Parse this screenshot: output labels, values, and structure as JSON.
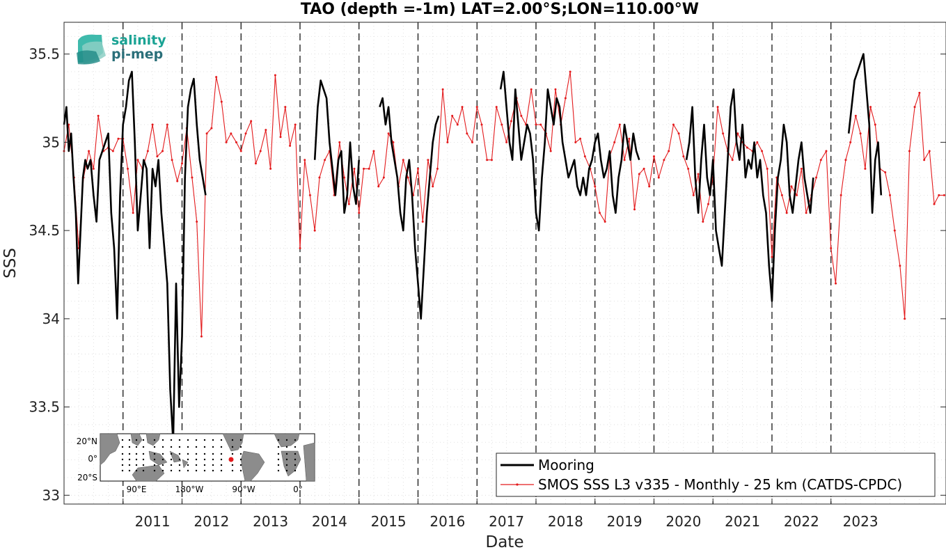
{
  "chart_data": {
    "type": "line",
    "title": "TAO (depth =-1m) LAT=2.00°S;LON=110.00°W",
    "xlabel": "Date",
    "ylabel": "SSS",
    "xlim": [
      2010.0,
      2024.95
    ],
    "ylim": [
      32.95,
      35.68
    ],
    "grid": true,
    "year_markers": [
      2011,
      2012,
      2013,
      2014,
      2015,
      2016,
      2017,
      2018,
      2019,
      2020,
      2021,
      2022,
      2023
    ],
    "x_tick_labels": [
      "2011",
      "2012",
      "2013",
      "2014",
      "2015",
      "2016",
      "2017",
      "2018",
      "2019",
      "2020",
      "2021",
      "2022",
      "2023"
    ],
    "y_ticks": [
      33,
      33.5,
      34,
      34.5,
      35,
      35.5
    ],
    "y_tick_labels": [
      "33",
      "33.5",
      "34",
      "34.5",
      "35",
      "35.5"
    ],
    "legend_placement": "bottom-right",
    "series": [
      {
        "name": "Mooring",
        "color": "#000000",
        "segments": [
          {
            "x": [
              2010.0,
              2010.04,
              2010.08,
              2010.12,
              2010.16,
              2010.2,
              2010.24,
              2010.28,
              2010.32,
              2010.36,
              2010.4,
              2010.45,
              2010.5,
              2010.55,
              2010.6,
              2010.65,
              2010.7,
              2010.75,
              2010.8,
              2010.85,
              2010.9,
              2010.95,
              2011.0,
              2011.05,
              2011.1,
              2011.15,
              2011.2,
              2011.25,
              2011.3,
              2011.35,
              2011.4,
              2011.45,
              2011.5,
              2011.55,
              2011.6,
              2011.65,
              2011.7,
              2011.75,
              2011.8,
              2011.85,
              2011.9,
              2011.95,
              2012.0,
              2012.05,
              2012.1,
              2012.15,
              2012.2,
              2012.25,
              2012.3,
              2012.35,
              2012.4
            ],
            "y": [
              35.1,
              35.2,
              34.95,
              35.05,
              34.8,
              34.6,
              34.2,
              34.5,
              34.8,
              34.9,
              34.85,
              34.9,
              34.7,
              34.55,
              34.9,
              34.95,
              35.0,
              35.05,
              34.6,
              34.4,
              34.0,
              34.7,
              35.1,
              35.2,
              35.35,
              35.4,
              35.0,
              34.5,
              34.7,
              34.9,
              34.85,
              34.4,
              34.85,
              34.75,
              34.9,
              34.6,
              34.4,
              34.2,
              33.6,
              33.3,
              34.2,
              33.5,
              33.9,
              34.8,
              35.2,
              35.3,
              35.36,
              35.1,
              34.9,
              34.8,
              34.7
            ]
          },
          {
            "x": [
              2014.25,
              2014.3,
              2014.35,
              2014.4,
              2014.45,
              2014.5,
              2014.55,
              2014.6,
              2014.65,
              2014.7,
              2014.75,
              2014.8,
              2014.85,
              2014.9,
              2014.95,
              2015.0
            ],
            "y": [
              34.9,
              35.2,
              35.35,
              35.3,
              35.25,
              35.0,
              34.85,
              34.7,
              34.9,
              34.95,
              34.6,
              34.7,
              35.0,
              34.75,
              34.65,
              34.9
            ]
          },
          {
            "x": [
              2015.35,
              2015.4,
              2015.45,
              2015.5,
              2015.55,
              2015.6,
              2015.65,
              2015.7,
              2015.75,
              2015.8,
              2015.85,
              2015.9,
              2015.95,
              2016.0,
              2016.05,
              2016.1,
              2016.15,
              2016.2,
              2016.25,
              2016.3,
              2016.35
            ],
            "y": [
              35.2,
              35.25,
              35.1,
              35.2,
              35.0,
              34.9,
              34.8,
              34.6,
              34.5,
              34.8,
              34.9,
              34.7,
              34.4,
              34.2,
              34.0,
              34.3,
              34.6,
              34.8,
              35.0,
              35.1,
              35.15
            ]
          },
          {
            "x": [
              2017.4,
              2017.45,
              2017.5,
              2017.55,
              2017.6,
              2017.65,
              2017.7,
              2017.75,
              2017.8,
              2017.85,
              2017.9,
              2017.95,
              2018.0,
              2018.05,
              2018.1,
              2018.15,
              2018.2,
              2018.25,
              2018.3,
              2018.35,
              2018.4,
              2018.45,
              2018.5,
              2018.55,
              2018.6,
              2018.65,
              2018.7,
              2018.75,
              2018.8,
              2018.85,
              2018.9,
              2018.95,
              2019.0,
              2019.05,
              2019.1,
              2019.15,
              2019.2,
              2019.25,
              2019.3,
              2019.35,
              2019.4,
              2019.45,
              2019.5,
              2019.55,
              2019.6,
              2019.65,
              2019.7,
              2019.75
            ],
            "y": [
              35.3,
              35.4,
              35.2,
              35.0,
              34.9,
              35.3,
              35.1,
              34.9,
              35.0,
              35.1,
              35.05,
              34.9,
              34.6,
              34.5,
              34.8,
              35.0,
              35.3,
              35.2,
              35.1,
              35.25,
              35.2,
              35.0,
              34.9,
              34.8,
              34.85,
              34.9,
              34.75,
              34.7,
              34.8,
              34.7,
              34.85,
              34.9,
              35.0,
              35.05,
              34.9,
              34.8,
              34.85,
              34.95,
              34.7,
              34.6,
              34.8,
              34.9,
              35.1,
              35.0,
              34.9,
              35.05,
              34.95,
              34.9
            ]
          },
          {
            "x": [
              2020.55,
              2020.6,
              2020.65,
              2020.7,
              2020.75,
              2020.8,
              2020.85,
              2020.9,
              2020.95,
              2021.0,
              2021.05,
              2021.1,
              2021.15,
              2021.2,
              2021.25,
              2021.3,
              2021.35,
              2021.4,
              2021.45,
              2021.5,
              2021.55,
              2021.6,
              2021.65,
              2021.7,
              2021.75,
              2021.8,
              2021.85,
              2021.9,
              2021.95,
              2022.0,
              2022.05,
              2022.1,
              2022.15,
              2022.2,
              2022.25,
              2022.3,
              2022.35,
              2022.4,
              2022.45,
              2022.5,
              2022.55,
              2022.6,
              2022.65,
              2022.7
            ],
            "y": [
              34.9,
              35.0,
              35.2,
              34.8,
              34.6,
              34.9,
              35.1,
              34.8,
              34.7,
              34.9,
              34.5,
              34.4,
              34.3,
              34.6,
              34.9,
              35.2,
              35.3,
              35.0,
              34.9,
              35.1,
              34.8,
              34.9,
              34.85,
              35.0,
              34.8,
              34.9,
              34.7,
              34.6,
              34.3,
              34.1,
              34.5,
              34.8,
              34.9,
              35.1,
              35.0,
              34.7,
              34.6,
              34.75,
              34.9,
              35.0,
              34.8,
              34.7,
              34.6,
              34.8
            ]
          },
          {
            "x": [
              2023.3,
              2023.35,
              2023.4,
              2023.45,
              2023.5,
              2023.55,
              2023.6,
              2023.65,
              2023.7,
              2023.75,
              2023.8,
              2023.85
            ],
            "y": [
              35.05,
              35.2,
              35.35,
              35.4,
              35.45,
              35.5,
              35.3,
              35.1,
              34.6,
              34.9,
              35.0,
              34.7
            ]
          }
        ]
      },
      {
        "name": "SMOS SSS L3 v335 - Monthly - 25 km (CATDS-CPDC)",
        "color": "#e31a1c",
        "x": [
          2010.0,
          2010.08,
          2010.17,
          2010.25,
          2010.33,
          2010.42,
          2010.5,
          2010.58,
          2010.67,
          2010.75,
          2010.83,
          2010.92,
          2011.0,
          2011.08,
          2011.17,
          2011.25,
          2011.33,
          2011.42,
          2011.5,
          2011.58,
          2011.67,
          2011.75,
          2011.83,
          2011.92,
          2012.0,
          2012.08,
          2012.17,
          2012.25,
          2012.33,
          2012.42,
          2012.5,
          2012.58,
          2012.67,
          2012.75,
          2012.83,
          2012.92,
          2013.0,
          2013.08,
          2013.17,
          2013.25,
          2013.33,
          2013.42,
          2013.5,
          2013.58,
          2013.67,
          2013.75,
          2013.83,
          2013.92,
          2014.0,
          2014.08,
          2014.17,
          2014.25,
          2014.33,
          2014.42,
          2014.5,
          2014.58,
          2014.67,
          2014.75,
          2014.83,
          2014.92,
          2015.0,
          2015.08,
          2015.17,
          2015.25,
          2015.33,
          2015.42,
          2015.5,
          2015.58,
          2015.67,
          2015.75,
          2015.83,
          2015.92,
          2016.0,
          2016.08,
          2016.17,
          2016.25,
          2016.33,
          2016.42,
          2016.5,
          2016.58,
          2016.67,
          2016.75,
          2016.83,
          2016.92,
          2017.0,
          2017.08,
          2017.17,
          2017.25,
          2017.33,
          2017.42,
          2017.5,
          2017.58,
          2017.67,
          2017.75,
          2017.83,
          2017.92,
          2018.0,
          2018.08,
          2018.17,
          2018.25,
          2018.33,
          2018.42,
          2018.5,
          2018.58,
          2018.67,
          2018.75,
          2018.83,
          2018.92,
          2019.0,
          2019.08,
          2019.17,
          2019.25,
          2019.33,
          2019.42,
          2019.5,
          2019.58,
          2019.67,
          2019.75,
          2019.83,
          2019.92,
          2020.0,
          2020.08,
          2020.17,
          2020.25,
          2020.33,
          2020.42,
          2020.5,
          2020.58,
          2020.67,
          2020.75,
          2020.83,
          2020.92,
          2021.0,
          2021.08,
          2021.17,
          2021.25,
          2021.33,
          2021.42,
          2021.5,
          2021.58,
          2021.67,
          2021.75,
          2021.83,
          2021.92,
          2022.0,
          2022.08,
          2022.17,
          2022.25,
          2022.33,
          2022.42,
          2022.5,
          2022.58,
          2022.67,
          2022.75,
          2022.83,
          2022.92,
          2023.0,
          2023.08,
          2023.17,
          2023.25,
          2023.33,
          2023.42,
          2023.5,
          2023.58,
          2023.67,
          2023.75,
          2023.83,
          2023.92,
          2024.0,
          2024.08,
          2024.17,
          2024.25,
          2024.33,
          2024.42,
          2024.5,
          2024.58,
          2024.67,
          2024.75,
          2024.83,
          2024.92
        ],
        "y": [
          34.95,
          35.1,
          34.8,
          34.4,
          34.8,
          34.95,
          34.85,
          35.15,
          34.95,
          34.97,
          34.95,
          35.02,
          35.02,
          34.85,
          34.6,
          34.9,
          34.85,
          34.95,
          35.1,
          34.92,
          34.95,
          35.1,
          34.9,
          34.78,
          34.88,
          35.08,
          34.8,
          34.55,
          33.9,
          35.05,
          35.08,
          35.37,
          35.23,
          35.0,
          35.05,
          35.0,
          34.95,
          35.05,
          35.12,
          34.88,
          34.95,
          35.07,
          34.85,
          35.38,
          35.03,
          35.2,
          34.98,
          35.1,
          34.4,
          34.9,
          34.7,
          34.5,
          34.8,
          34.9,
          34.95,
          34.7,
          35.0,
          34.8,
          34.65,
          34.85,
          34.6,
          34.85,
          34.85,
          34.95,
          34.75,
          34.8,
          35.05,
          35.0,
          34.75,
          34.9,
          34.8,
          34.7,
          34.85,
          34.55,
          34.9,
          34.75,
          34.85,
          35.3,
          35.0,
          35.15,
          35.1,
          35.2,
          35.05,
          35.0,
          35.2,
          35.1,
          34.9,
          34.9,
          35.2,
          35.1,
          35.0,
          35.12,
          35.25,
          35.15,
          35.1,
          35.3,
          35.1,
          35.1,
          35.05,
          34.95,
          35.3,
          35.1,
          35.25,
          35.4,
          35.0,
          35.02,
          34.92,
          34.85,
          34.75,
          34.6,
          34.55,
          34.92,
          35.0,
          35.1,
          34.9,
          35.02,
          34.62,
          34.82,
          34.85,
          34.75,
          34.92,
          34.8,
          34.9,
          34.95,
          35.1,
          35.05,
          34.92,
          34.85,
          34.7,
          34.82,
          34.55,
          34.65,
          34.8,
          35.2,
          35.05,
          34.95,
          34.9,
          35.05,
          35.0,
          34.97,
          34.95,
          35.0,
          34.95,
          34.85,
          34.35,
          34.8,
          34.7,
          34.6,
          34.75,
          34.7,
          34.85,
          34.6,
          34.7,
          34.8,
          34.9,
          34.95,
          34.4,
          34.2,
          34.7,
          34.9,
          35.0,
          35.15,
          35.05,
          34.85,
          35.2,
          35.1,
          34.85,
          34.83,
          34.7,
          34.5,
          34.3,
          34.0,
          34.95,
          35.2,
          35.28,
          34.9,
          34.95,
          34.65,
          34.7,
          34.7
        ]
      }
    ]
  },
  "logo": {
    "line1": "salinity",
    "line2": "pi-mep"
  },
  "inset_map": {
    "lat_labels": [
      "20°N",
      "0°",
      "20°S"
    ],
    "lon_labels": [
      "90°E",
      "180°W",
      "90°W",
      "0°"
    ]
  }
}
